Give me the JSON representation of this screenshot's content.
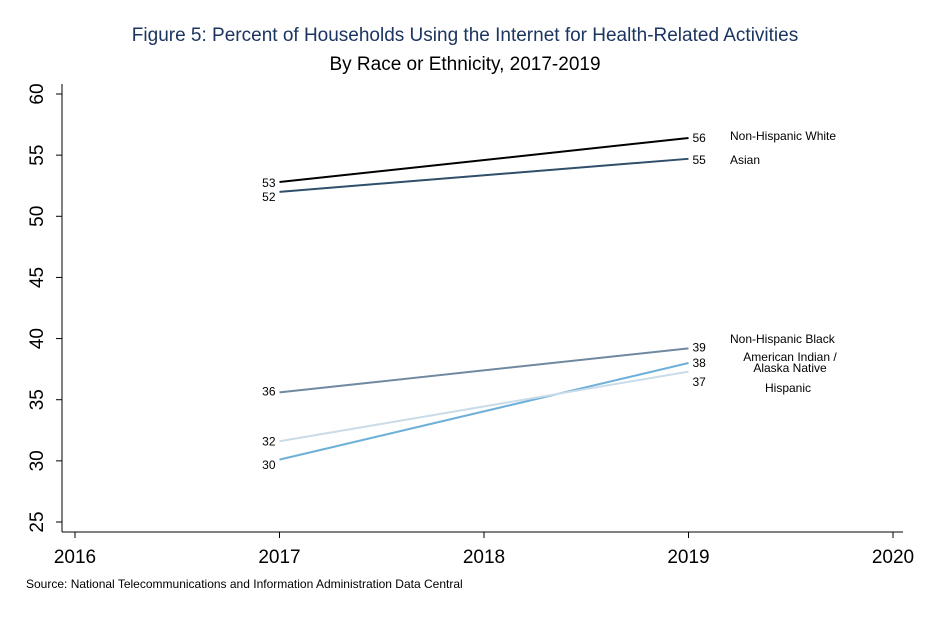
{
  "chart_data": {
    "type": "line",
    "title": "Figure 5: Percent of Households Using the Internet for Health-Related Activities",
    "subtitle": "By Race or Ethnicity, 2017-2019",
    "source": "Source: National Telecommunications and Information Administration Data Central",
    "x": [
      2017,
      2019
    ],
    "xlim": [
      2016,
      2020
    ],
    "xticks": [
      2016,
      2017,
      2018,
      2019,
      2020
    ],
    "ylim": [
      25,
      60
    ],
    "yticks": [
      25,
      30,
      35,
      40,
      45,
      50,
      55,
      60
    ],
    "series": [
      {
        "name": "Non-Hispanic White",
        "color": "#000000",
        "values": [
          52.8,
          56.4
        ],
        "value_labels": [
          "53",
          "56"
        ]
      },
      {
        "name": "Asian",
        "color": "#2f4f6a",
        "values": [
          52.0,
          54.7
        ],
        "value_labels": [
          "52",
          "55"
        ]
      },
      {
        "name": "Non-Hispanic Black",
        "color": "#7089a0",
        "values": [
          35.6,
          39.2
        ],
        "value_labels": [
          "36",
          "39"
        ]
      },
      {
        "name": "American Indian / Alaska Native",
        "color": "#6eb0d8",
        "values": [
          30.1,
          38.0
        ],
        "value_labels": [
          "30",
          "38"
        ]
      },
      {
        "name": "Hispanic",
        "color": "#cadce8",
        "values": [
          31.6,
          37.3
        ],
        "value_labels": [
          "32",
          "37"
        ]
      }
    ]
  }
}
